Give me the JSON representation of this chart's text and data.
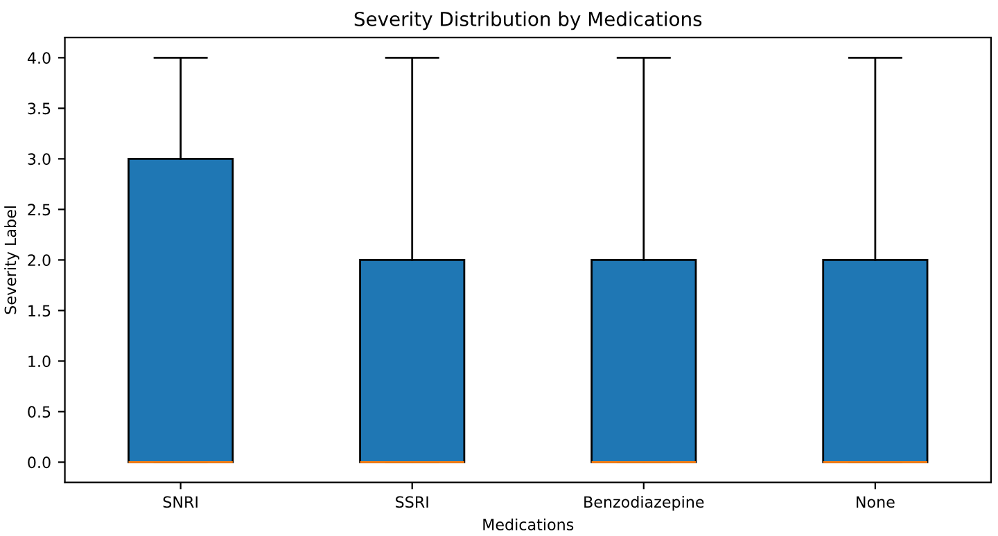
{
  "chart_data": {
    "type": "box",
    "title": "Severity Distribution by Medications",
    "xlabel": "Medications",
    "ylabel": "Severity Label",
    "categories": [
      "SNRI",
      "SSRI",
      "Benzodiazepine",
      "None"
    ],
    "series": [
      {
        "color": "#1f77b4",
        "boxes": [
          {
            "low": 0,
            "q1": 0,
            "median": 0,
            "q3": 3,
            "high": 4
          },
          {
            "low": 0,
            "q1": 0,
            "median": 0,
            "q3": 2,
            "high": 4
          },
          {
            "low": 0,
            "q1": 0,
            "median": 0,
            "q3": 2,
            "high": 4
          },
          {
            "low": 0,
            "q1": 0,
            "median": 0,
            "q3": 2,
            "high": 4
          }
        ]
      }
    ],
    "ylim": [
      -0.2,
      4.2
    ],
    "yticks": [
      {
        "value": 0,
        "label": "0.0"
      },
      {
        "value": 0.5,
        "label": "0.5"
      },
      {
        "value": 1,
        "label": "1.0"
      },
      {
        "value": 1.5,
        "label": "1.5"
      },
      {
        "value": 2,
        "label": "2.0"
      },
      {
        "value": 2.5,
        "label": "2.5"
      },
      {
        "value": 3,
        "label": "3.0"
      },
      {
        "value": 3.5,
        "label": "3.5"
      },
      {
        "value": 4,
        "label": "4.0"
      }
    ],
    "grid": false,
    "legend": false
  }
}
